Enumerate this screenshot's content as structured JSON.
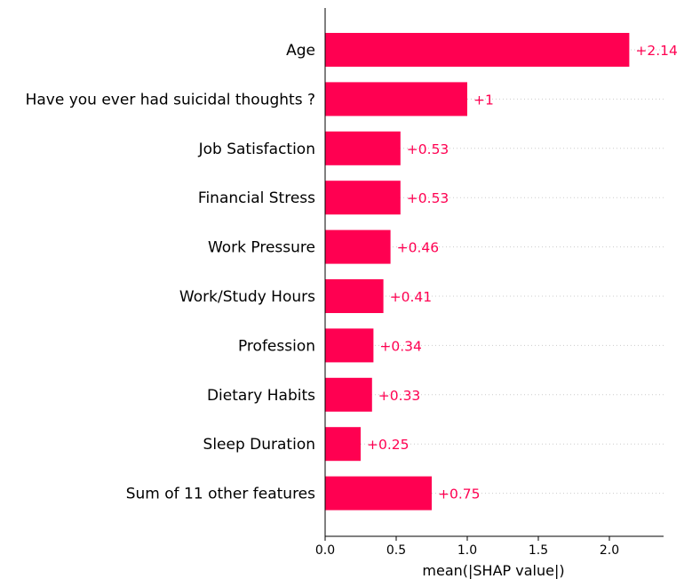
{
  "chart_data": {
    "type": "bar",
    "orientation": "horizontal",
    "categories": [
      "Age",
      "Have you ever had suicidal thoughts ?",
      "Job Satisfaction",
      "Financial Stress",
      "Work Pressure",
      "Work/Study Hours",
      "Profession",
      "Dietary Habits",
      "Sleep Duration",
      "Sum of 11 other features"
    ],
    "values": [
      2.14,
      1.0,
      0.53,
      0.53,
      0.46,
      0.41,
      0.34,
      0.33,
      0.25,
      0.75
    ],
    "value_labels": [
      "+2.14",
      "+1",
      "+0.53",
      "+0.53",
      "+0.46",
      "+0.41",
      "+0.34",
      "+0.33",
      "+0.25",
      "+0.75"
    ],
    "xlabel": "mean(|SHAP value|)",
    "ylabel": "",
    "title": "",
    "xlim": [
      0,
      2.37
    ],
    "xticks": [
      0.0,
      0.5,
      1.0,
      1.5,
      2.0
    ],
    "xtick_labels": [
      "0.0",
      "0.5",
      "1.0",
      "1.5",
      "2.0"
    ],
    "grid": "dotted horizontal lines per category",
    "bar_color": "#ff0051",
    "label_color": "#ff0051"
  }
}
